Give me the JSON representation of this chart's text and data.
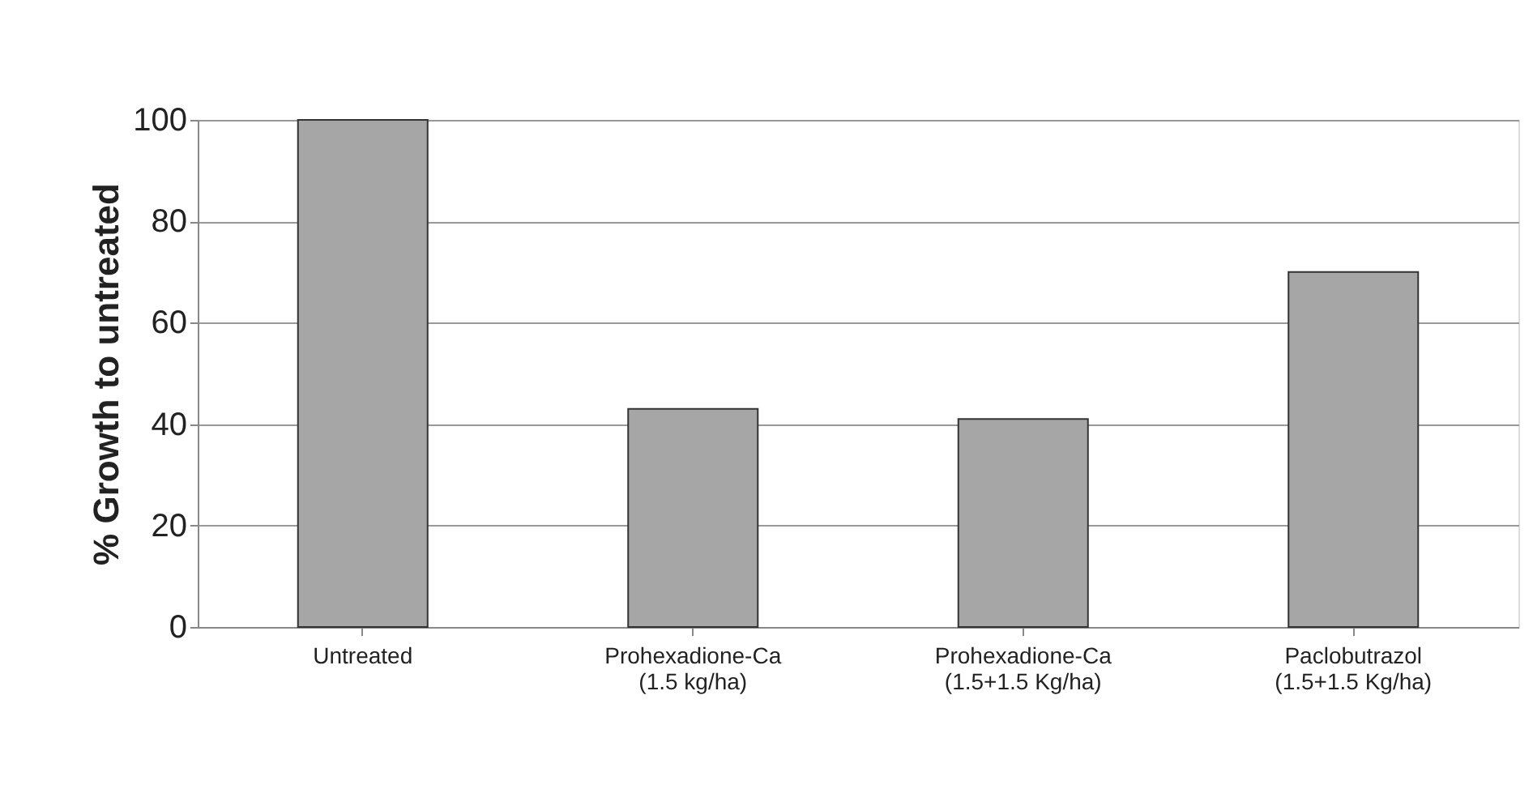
{
  "chart_data": {
    "type": "bar",
    "ylabel": "% Growth to untreated",
    "categories": [
      "Untreated",
      "Prohexadione-Ca\n(1.5 kg/ha)",
      "Prohexadione-Ca\n(1.5+1.5 Kg/ha)",
      "Paclobutrazol\n(1.5+1.5 Kg/ha)"
    ],
    "values": [
      100,
      43,
      41,
      70
    ],
    "color": "#a6a6a6",
    "ylim": [
      0,
      100
    ],
    "yticks": [
      0,
      20,
      40,
      60,
      80,
      100
    ],
    "grid": "y"
  }
}
